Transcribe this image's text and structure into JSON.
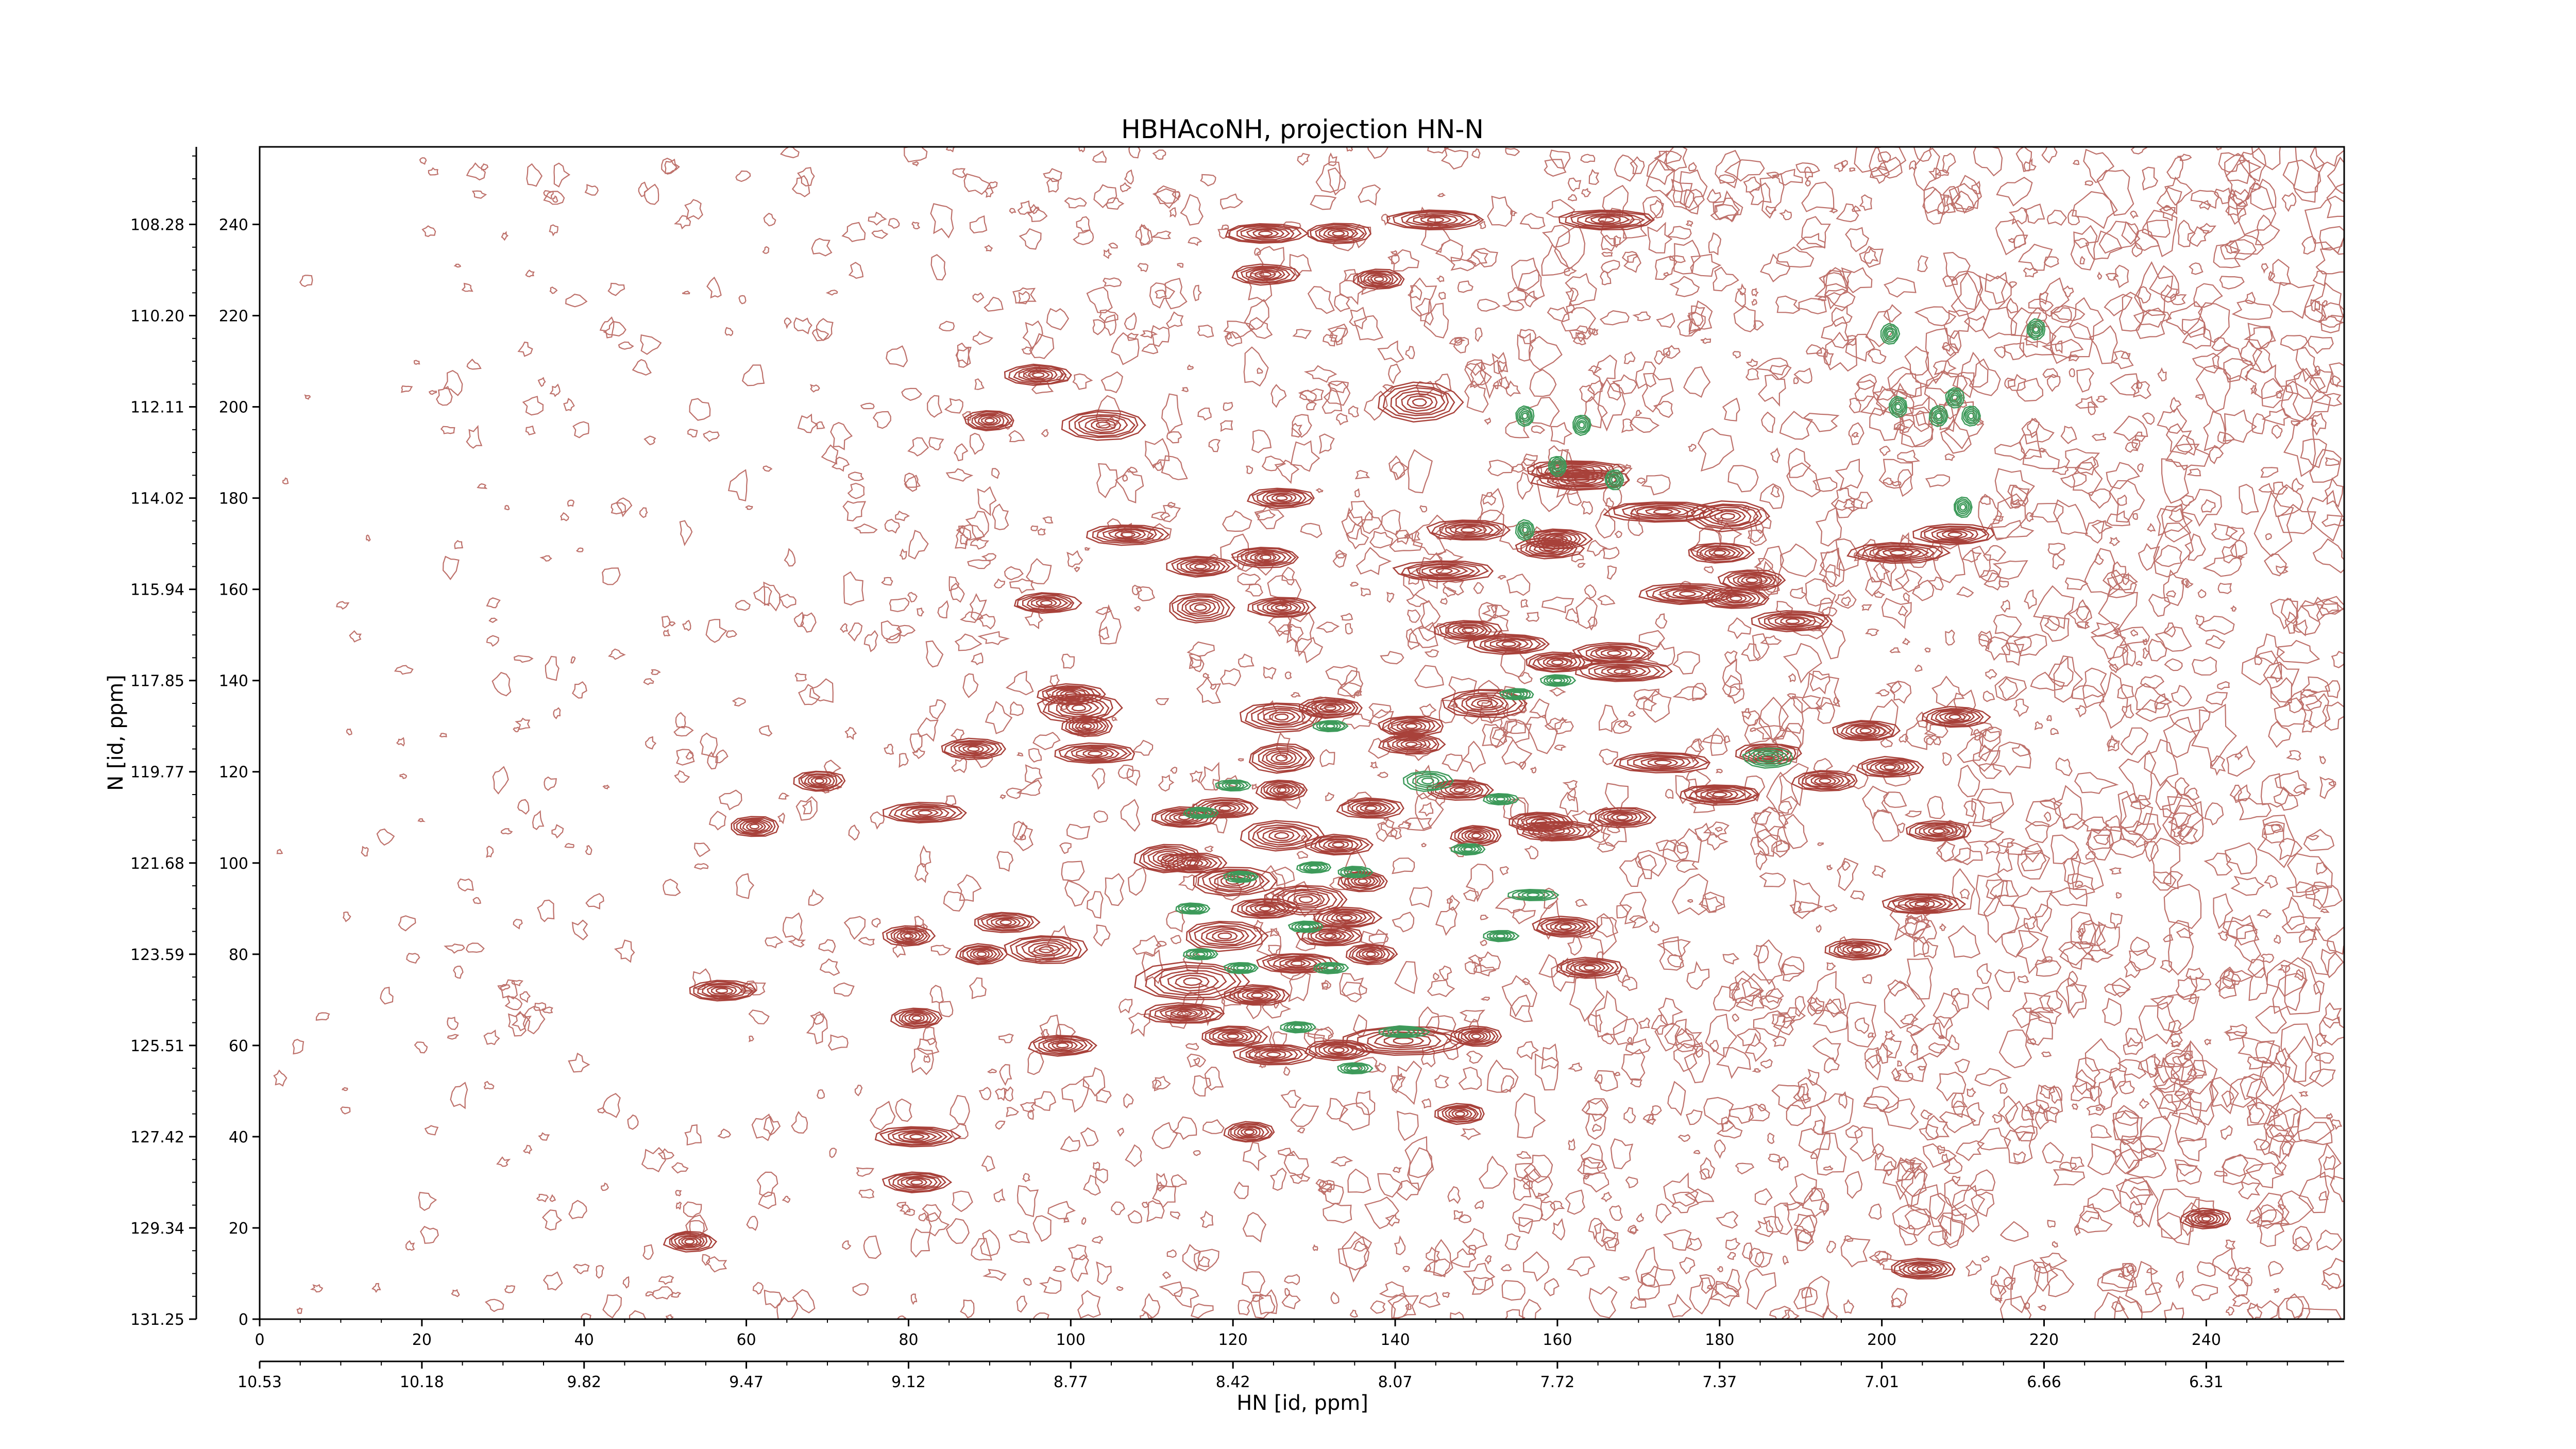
{
  "chart_data": {
    "type": "contour",
    "title": "HBHAcoNH, projection HN-N",
    "xlabel": "HN [id, ppm]",
    "ylabel": "N [id, ppm]",
    "x_index_range": [
      0,
      257
    ],
    "y_index_range": [
      0,
      257
    ],
    "x_index_ticks": [
      "0",
      "20",
      "40",
      "60",
      "80",
      "100",
      "120",
      "140",
      "160",
      "180",
      "200",
      "220",
      "240"
    ],
    "x_ppm_ticks": [
      "10.53",
      "10.18",
      "9.82",
      "9.47",
      "9.12",
      "8.77",
      "8.42",
      "8.07",
      "7.72",
      "7.37",
      "7.01",
      "6.66",
      "6.31"
    ],
    "y_index_ticks": [
      "0",
      "20",
      "40",
      "60",
      "80",
      "100",
      "120",
      "140",
      "160",
      "180",
      "200",
      "220",
      "240"
    ],
    "y_ppm_ticks": [
      "131.25",
      "129.34",
      "127.42",
      "125.51",
      "123.59",
      "121.68",
      "119.77",
      "117.85",
      "115.94",
      "114.02",
      "112.11",
      "110.20",
      "108.28"
    ],
    "colors": {
      "positive": "#a8413a",
      "negative": "#3d9a5a",
      "axis": "#000000"
    },
    "positive_peaks": [
      [
        124,
        238,
        5,
        2
      ],
      [
        133,
        238,
        4,
        2
      ],
      [
        145,
        241,
        6,
        2
      ],
      [
        166,
        241,
        6,
        2
      ],
      [
        124,
        229,
        4,
        2
      ],
      [
        138,
        228,
        3,
        2
      ],
      [
        96,
        207,
        4,
        2
      ],
      [
        90,
        197,
        3,
        2
      ],
      [
        104,
        196,
        5,
        3
      ],
      [
        143,
        201,
        5,
        4
      ],
      [
        162,
        186,
        6,
        2
      ],
      [
        163,
        184,
        6,
        2
      ],
      [
        173,
        177,
        7,
        2
      ],
      [
        181,
        176,
        5,
        3
      ],
      [
        126,
        180,
        4,
        2
      ],
      [
        107,
        172,
        5,
        2
      ],
      [
        149,
        173,
        5,
        2
      ],
      [
        160,
        171,
        4,
        2
      ],
      [
        146,
        164,
        6,
        2
      ],
      [
        159,
        169,
        4,
        2
      ],
      [
        116,
        165,
        4,
        2
      ],
      [
        124,
        167,
        4,
        2
      ],
      [
        180,
        168,
        4,
        2
      ],
      [
        202,
        168,
        6,
        2
      ],
      [
        209,
        172,
        5,
        2
      ],
      [
        176,
        159,
        6,
        2
      ],
      [
        184,
        162,
        4,
        2
      ],
      [
        189,
        153,
        5,
        2
      ],
      [
        182,
        158,
        4,
        2
      ],
      [
        97,
        157,
        4,
        2
      ],
      [
        116,
        156,
        4,
        3
      ],
      [
        126,
        156,
        4,
        2
      ],
      [
        149,
        151,
        4,
        2
      ],
      [
        154,
        148,
        5,
        2
      ],
      [
        160,
        144,
        4,
        2
      ],
      [
        168,
        142,
        6,
        2
      ],
      [
        167,
        146,
        5,
        2
      ],
      [
        151,
        135,
        5,
        3
      ],
      [
        142,
        130,
        4,
        2
      ],
      [
        132,
        134,
        4,
        2
      ],
      [
        126,
        132,
        5,
        3
      ],
      [
        100,
        137,
        4,
        2
      ],
      [
        101,
        134,
        5,
        3
      ],
      [
        102,
        130,
        3,
        2
      ],
      [
        88,
        125,
        4,
        2
      ],
      [
        103,
        124,
        5,
        2
      ],
      [
        142,
        126,
        4,
        2
      ],
      [
        173,
        122,
        6,
        2
      ],
      [
        186,
        124,
        4,
        2
      ],
      [
        198,
        129,
        4,
        2
      ],
      [
        209,
        132,
        4,
        2
      ],
      [
        69,
        118,
        3,
        2
      ],
      [
        61,
        108,
        3,
        2
      ],
      [
        82,
        111,
        5,
        2
      ],
      [
        114,
        110,
        4,
        2
      ],
      [
        119,
        112,
        4,
        2
      ],
      [
        126,
        106,
        5,
        3
      ],
      [
        133,
        104,
        4,
        2
      ],
      [
        150,
        106,
        3,
        2
      ],
      [
        158,
        109,
        4,
        2
      ],
      [
        160,
        107,
        5,
        2
      ],
      [
        168,
        110,
        4,
        2
      ],
      [
        180,
        115,
        5,
        2
      ],
      [
        193,
        118,
        4,
        2
      ],
      [
        201,
        121,
        4,
        2
      ],
      [
        207,
        107,
        4,
        2
      ],
      [
        115,
        100,
        4,
        2
      ],
      [
        120,
        96,
        5,
        3
      ],
      [
        129,
        92,
        5,
        3
      ],
      [
        136,
        96,
        3,
        2
      ],
      [
        124,
        90,
        4,
        2
      ],
      [
        134,
        88,
        4,
        2
      ],
      [
        119,
        84,
        5,
        3
      ],
      [
        128,
        78,
        5,
        2
      ],
      [
        132,
        84,
        4,
        2
      ],
      [
        137,
        80,
        3,
        2
      ],
      [
        92,
        87,
        4,
        2
      ],
      [
        89,
        80,
        3,
        2
      ],
      [
        97,
        81,
        5,
        3
      ],
      [
        80,
        84,
        3,
        2
      ],
      [
        115,
        74,
        7,
        4
      ],
      [
        123,
        71,
        4,
        2
      ],
      [
        114,
        67,
        5,
        2
      ],
      [
        120,
        62,
        4,
        2
      ],
      [
        125,
        58,
        5,
        2
      ],
      [
        141,
        61,
        8,
        3
      ],
      [
        133,
        59,
        4,
        2
      ],
      [
        150,
        62,
        3,
        2
      ],
      [
        57,
        72,
        4,
        2
      ],
      [
        81,
        66,
        3,
        2
      ],
      [
        99,
        60,
        4,
        2
      ],
      [
        161,
        86,
        4,
        2
      ],
      [
        164,
        77,
        4,
        2
      ],
      [
        205,
        91,
        5,
        2
      ],
      [
        197,
        81,
        4,
        2
      ],
      [
        122,
        41,
        3,
        2
      ],
      [
        81,
        40,
        5,
        2
      ],
      [
        81,
        30,
        4,
        2
      ],
      [
        148,
        45,
        3,
        2
      ],
      [
        53,
        17,
        3,
        2
      ],
      [
        205,
        11,
        4,
        2
      ],
      [
        240,
        22,
        3,
        2
      ],
      [
        126,
        123,
        4,
        3
      ],
      [
        112,
        101,
        4,
        3
      ],
      [
        137,
        112,
        4,
        2
      ],
      [
        148,
        116,
        4,
        2
      ],
      [
        126,
        116,
        3,
        2
      ]
    ],
    "negative_peaks": [
      [
        120,
        117,
        2,
        1
      ],
      [
        116,
        111,
        2,
        1
      ],
      [
        121,
        97,
        2,
        1
      ],
      [
        115,
        90,
        2,
        1
      ],
      [
        116,
        80,
        2,
        1
      ],
      [
        121,
        77,
        2,
        1
      ],
      [
        130,
        99,
        2,
        1
      ],
      [
        135,
        98,
        2,
        1
      ],
      [
        129,
        86,
        2,
        1
      ],
      [
        132,
        77,
        2,
        1
      ],
      [
        144,
        118,
        3,
        2
      ],
      [
        157,
        93,
        3,
        1
      ],
      [
        149,
        103,
        2,
        1
      ],
      [
        155,
        137,
        2,
        1
      ],
      [
        160,
        140,
        2,
        1
      ],
      [
        141,
        63,
        3,
        1
      ],
      [
        128,
        64,
        2,
        1
      ],
      [
        135,
        55,
        2,
        1
      ],
      [
        186,
        123,
        3,
        2
      ],
      [
        167,
        184,
        1,
        2
      ],
      [
        160,
        187,
        1,
        2
      ],
      [
        156,
        198,
        1,
        2
      ],
      [
        163,
        196,
        1,
        2
      ],
      [
        156,
        173,
        1,
        2
      ],
      [
        201,
        216,
        1,
        2
      ],
      [
        202,
        200,
        1,
        2
      ],
      [
        209,
        202,
        1,
        2
      ],
      [
        207,
        198,
        1,
        2
      ],
      [
        211,
        198,
        1,
        2
      ],
      [
        210,
        178,
        1,
        2
      ],
      [
        219,
        217,
        1,
        2
      ],
      [
        153,
        84,
        2,
        1
      ],
      [
        132,
        130,
        2,
        1
      ],
      [
        153,
        114,
        2,
        1
      ]
    ]
  }
}
